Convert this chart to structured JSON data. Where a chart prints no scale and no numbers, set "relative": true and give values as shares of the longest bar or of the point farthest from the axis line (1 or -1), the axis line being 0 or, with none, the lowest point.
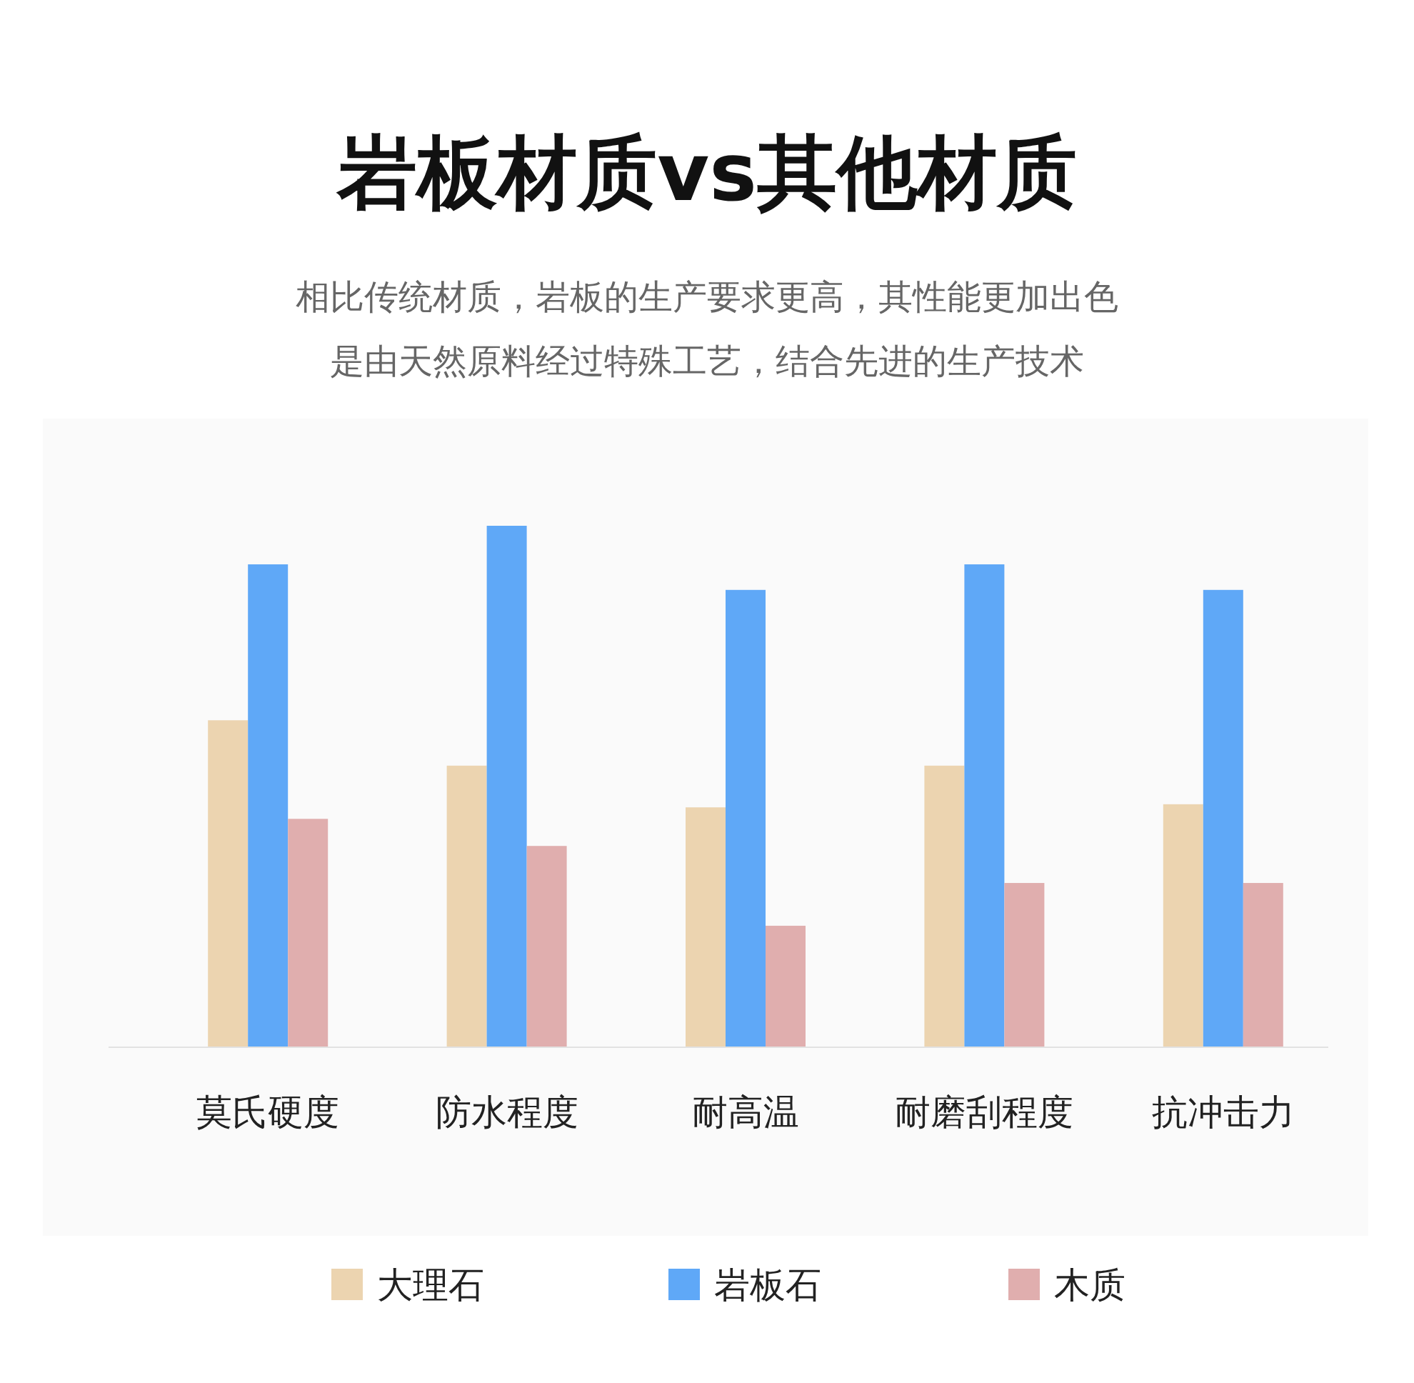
{
  "chart_data": {
    "type": "bar",
    "title": "岩板材质vs其他材质",
    "subtitle": "相比传统材质，岩板的生产要求更高，其性能更加出色",
    "annotations": [
      "是由天然原料经过特殊工艺，结合先进的生产技术"
    ],
    "categories": [
      "莫氏硬度",
      "防水程度",
      "耐高温",
      "耐磨刮程度",
      "抗冲击力"
    ],
    "series": [
      {
        "name": "大理石",
        "color": "#ecd4b0",
        "values": [
          0.627,
          0.54,
          0.46,
          0.54,
          0.466
        ]
      },
      {
        "name": "岩板石",
        "color": "#5fa8f7",
        "values": [
          0.926,
          1,
          0.877,
          0.926,
          0.877
        ]
      },
      {
        "name": "木质",
        "color": "#e0aeae",
        "values": [
          0.438,
          0.386,
          0.233,
          0.315,
          0.315
        ]
      }
    ],
    "relative": true,
    "legend": "bottom"
  }
}
